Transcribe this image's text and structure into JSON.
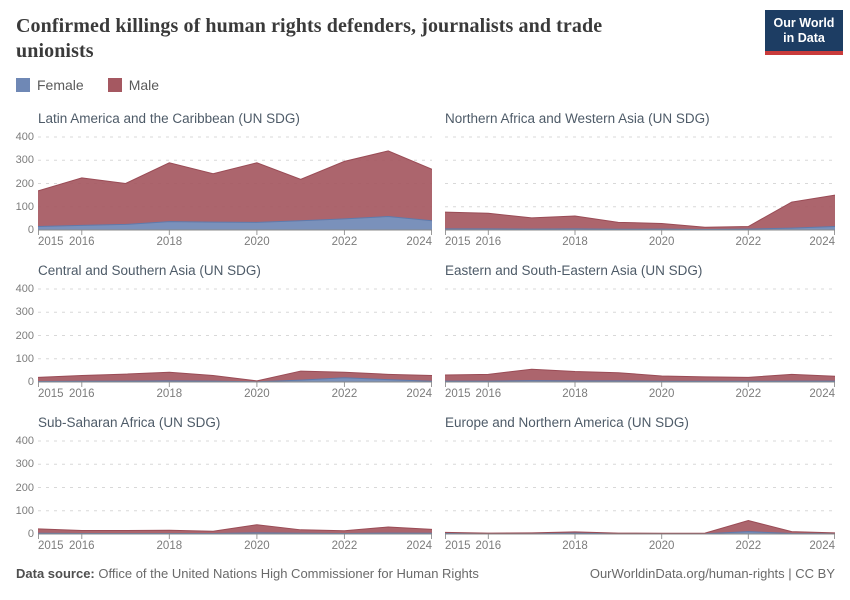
{
  "header": {
    "title": "Confirmed killings of human rights defenders, journalists and trade unionists"
  },
  "logo": {
    "line1": "Our World",
    "line2": "in Data",
    "bg_color": "#1d3d63",
    "bar_color": "#c93b3b"
  },
  "legend": [
    {
      "label": "Female",
      "color": "#6f88b5"
    },
    {
      "label": "Male",
      "color": "#a55861"
    }
  ],
  "colors": {
    "female_fill": "#6f88b5",
    "female_stroke": "#5f7aab",
    "male_fill": "#a55861",
    "male_stroke": "#9a4c56"
  },
  "chart_data": [
    {
      "type": "area",
      "stacked": true,
      "title": "Latin America and the Caribbean (UN SDG)",
      "x": [
        2015,
        2016,
        2017,
        2018,
        2019,
        2020,
        2021,
        2022,
        2023,
        2024
      ],
      "series": [
        {
          "name": "Female",
          "color": "#6f88b5",
          "stroke": "#5f7aab",
          "values": [
            15,
            20,
            24,
            36,
            34,
            33,
            40,
            48,
            58,
            40
          ]
        },
        {
          "name": "Male",
          "color": "#a55861",
          "stroke": "#9a4c56",
          "values": [
            153,
            204,
            176,
            253,
            208,
            256,
            178,
            247,
            282,
            221
          ]
        }
      ],
      "ylim": [
        0,
        400
      ],
      "yticks": [
        0,
        100,
        200,
        300,
        400
      ],
      "xtick_labels": [
        2015,
        2016,
        2018,
        2020,
        2022,
        2024
      ],
      "show_y_labels": true,
      "grid": "dashed"
    },
    {
      "type": "area",
      "stacked": true,
      "title": "Northern Africa and Western Asia (UN SDG)",
      "x": [
        2015,
        2016,
        2017,
        2018,
        2019,
        2020,
        2021,
        2022,
        2023,
        2024
      ],
      "series": [
        {
          "name": "Female",
          "color": "#6f88b5",
          "stroke": "#5f7aab",
          "values": [
            5,
            5,
            4,
            5,
            3,
            4,
            2,
            4,
            8,
            15
          ]
        },
        {
          "name": "Male",
          "color": "#a55861",
          "stroke": "#9a4c56",
          "values": [
            72,
            67,
            48,
            55,
            30,
            24,
            10,
            11,
            112,
            135
          ]
        }
      ],
      "ylim": [
        0,
        400
      ],
      "yticks": [
        0,
        100,
        200,
        300,
        400
      ],
      "xtick_labels": [
        2015,
        2016,
        2018,
        2020,
        2022,
        2024
      ],
      "show_y_labels": false,
      "grid": "dashed"
    },
    {
      "type": "area",
      "stacked": true,
      "title": "Central and Southern Asia (UN SDG)",
      "x": [
        2015,
        2016,
        2017,
        2018,
        2019,
        2020,
        2021,
        2022,
        2023,
        2024
      ],
      "series": [
        {
          "name": "Female",
          "color": "#6f88b5",
          "stroke": "#5f7aab",
          "values": [
            2,
            3,
            4,
            5,
            4,
            1,
            8,
            18,
            10,
            3
          ]
        },
        {
          "name": "Male",
          "color": "#a55861",
          "stroke": "#9a4c56",
          "values": [
            18,
            25,
            30,
            37,
            24,
            4,
            39,
            24,
            23,
            25
          ]
        }
      ],
      "ylim": [
        0,
        400
      ],
      "yticks": [
        0,
        100,
        200,
        300,
        400
      ],
      "xtick_labels": [
        2015,
        2016,
        2018,
        2020,
        2022,
        2024
      ],
      "show_y_labels": true,
      "grid": "dashed"
    },
    {
      "type": "area",
      "stacked": true,
      "title": "Eastern and South-Eastern Asia (UN SDG)",
      "x": [
        2015,
        2016,
        2017,
        2018,
        2019,
        2020,
        2021,
        2022,
        2023,
        2024
      ],
      "series": [
        {
          "name": "Female",
          "color": "#6f88b5",
          "stroke": "#5f7aab",
          "values": [
            4,
            4,
            6,
            5,
            5,
            3,
            3,
            3,
            4,
            4
          ]
        },
        {
          "name": "Male",
          "color": "#a55861",
          "stroke": "#9a4c56",
          "values": [
            26,
            29,
            49,
            40,
            35,
            23,
            19,
            17,
            29,
            21
          ]
        }
      ],
      "ylim": [
        0,
        400
      ],
      "yticks": [
        0,
        100,
        200,
        300,
        400
      ],
      "xtick_labels": [
        2015,
        2016,
        2018,
        2020,
        2022,
        2024
      ],
      "show_y_labels": false,
      "grid": "dashed"
    },
    {
      "type": "area",
      "stacked": true,
      "title": "Sub-Saharan Africa (UN SDG)",
      "x": [
        2015,
        2016,
        2017,
        2018,
        2019,
        2020,
        2021,
        2022,
        2023,
        2024
      ],
      "series": [
        {
          "name": "Female",
          "color": "#6f88b5",
          "stroke": "#5f7aab",
          "values": [
            3,
            2,
            2,
            2,
            2,
            5,
            3,
            2,
            4,
            3
          ]
        },
        {
          "name": "Male",
          "color": "#a55861",
          "stroke": "#9a4c56",
          "values": [
            19,
            13,
            13,
            14,
            10,
            35,
            15,
            12,
            26,
            17
          ]
        }
      ],
      "ylim": [
        0,
        400
      ],
      "yticks": [
        0,
        100,
        200,
        300,
        400
      ],
      "xtick_labels": [
        2015,
        2016,
        2018,
        2020,
        2022,
        2024
      ],
      "show_y_labels": true,
      "grid": "dashed"
    },
    {
      "type": "area",
      "stacked": true,
      "title": "Europe and Northern America (UN SDG)",
      "x": [
        2015,
        2016,
        2017,
        2018,
        2019,
        2020,
        2021,
        2022,
        2023,
        2024
      ],
      "series": [
        {
          "name": "Female",
          "color": "#6f88b5",
          "stroke": "#5f7aab",
          "values": [
            2,
            1,
            1,
            3,
            1,
            1,
            1,
            10,
            2,
            1
          ]
        },
        {
          "name": "Male",
          "color": "#a55861",
          "stroke": "#9a4c56",
          "values": [
            5,
            3,
            4,
            6,
            3,
            2,
            3,
            48,
            8,
            4
          ]
        }
      ],
      "ylim": [
        0,
        400
      ],
      "yticks": [
        0,
        100,
        200,
        300,
        400
      ],
      "xtick_labels": [
        2015,
        2016,
        2018,
        2020,
        2022,
        2024
      ],
      "show_y_labels": false,
      "grid": "dashed"
    }
  ],
  "footer": {
    "source_label": "Data source:",
    "source_text": " Office of the United Nations High Commissioner for Human Rights",
    "credit": "OurWorldinData.org/human-rights | CC BY"
  }
}
